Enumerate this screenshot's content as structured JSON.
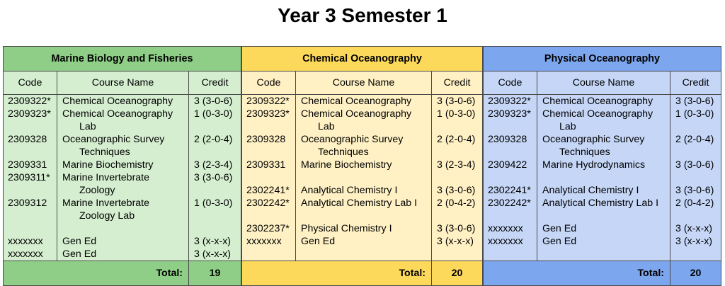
{
  "title": "Year 3 Semester 1",
  "columns": {
    "code": "Code",
    "name": "Course Name",
    "credit": "Credit"
  },
  "total_label": "Total:",
  "programs": [
    {
      "name": "Marine Biology and Fisheries",
      "total": "19",
      "rows": [
        {
          "code": "2309322*",
          "name": [
            "Chemical Oceanography"
          ],
          "credit": "3 (3-0-6)"
        },
        {
          "code": "2309323*",
          "name": [
            "Chemical Oceanography",
            "Lab"
          ],
          "credit": "1 (0-3-0)"
        },
        {
          "code": "2309328",
          "name": [
            "Oceanographic Survey",
            "Techniques"
          ],
          "credit": "2 (2-0-4)"
        },
        {
          "code": "2309331",
          "name": [
            "Marine Biochemistry"
          ],
          "credit": "3 (2-3-4)"
        },
        {
          "code": "2309311*",
          "name": [
            "Marine Invertebrate",
            "Zoology"
          ],
          "credit": "3 (3-0-6)"
        },
        {
          "code": "2309312",
          "name": [
            "Marine Invertebrate",
            "Zoology Lab"
          ],
          "credit": "1 (0-3-0)"
        },
        {
          "code": "",
          "name": [
            ""
          ],
          "credit": ""
        },
        {
          "code": "xxxxxxx",
          "name": [
            "Gen Ed"
          ],
          "credit": "3 (x-x-x)"
        },
        {
          "code": "xxxxxxx",
          "name": [
            "Gen Ed"
          ],
          "credit": "3 (x-x-x)"
        }
      ]
    },
    {
      "name": "Chemical Oceanography",
      "total": "20",
      "rows": [
        {
          "code": "2309322*",
          "name": [
            "Chemical Oceanography"
          ],
          "credit": "3 (3-0-6)"
        },
        {
          "code": "2309323*",
          "name": [
            "Chemical Oceanography",
            "Lab"
          ],
          "credit": "1 (0-3-0)"
        },
        {
          "code": "2309328",
          "name": [
            "Oceanographic Survey",
            "Techniques"
          ],
          "credit": "2 (2-0-4)"
        },
        {
          "code": "2309331",
          "name": [
            "Marine Biochemistry"
          ],
          "credit": "3 (2-3-4)"
        },
        {
          "code": "",
          "name": [
            ""
          ],
          "credit": ""
        },
        {
          "code": "2302241*",
          "name": [
            "Analytical Chemistry I"
          ],
          "credit": "3 (3-0-6)"
        },
        {
          "code": "2302242*",
          "name": [
            "Analytical Chemistry Lab I"
          ],
          "credit": "2 (0-4-2)"
        },
        {
          "code": "",
          "name": [
            ""
          ],
          "credit": ""
        },
        {
          "code": "2302237*",
          "name": [
            "Physical Chemistry I"
          ],
          "credit": "3 (3-0-6)"
        },
        {
          "code": "xxxxxxx",
          "name": [
            "Gen Ed"
          ],
          "credit": "3 (x-x-x)"
        }
      ]
    },
    {
      "name": "Physical Oceanography",
      "total": "20",
      "rows": [
        {
          "code": "2309322*",
          "name": [
            "Chemical Oceanography"
          ],
          "credit": "3 (3-0-6)"
        },
        {
          "code": "2309323*",
          "name": [
            "Chemical Oceanography",
            "Lab"
          ],
          "credit": "1 (0-3-0)"
        },
        {
          "code": "2309328",
          "name": [
            "Oceanographic Survey",
            "Techniques"
          ],
          "credit": "2 (2-0-4)"
        },
        {
          "code": "2309422",
          "name": [
            "Marine Hydrodynamics"
          ],
          "credit": "3 (3-0-6)"
        },
        {
          "code": "",
          "name": [
            ""
          ],
          "credit": ""
        },
        {
          "code": "2302241*",
          "name": [
            "Analytical Chemistry I"
          ],
          "credit": "3 (3-0-6)"
        },
        {
          "code": "2302242*",
          "name": [
            "Analytical Chemistry Lab I"
          ],
          "credit": "2 (0-4-2)"
        },
        {
          "code": "",
          "name": [
            ""
          ],
          "credit": ""
        },
        {
          "code": "xxxxxxx",
          "name": [
            "Gen Ed"
          ],
          "credit": "3 (x-x-x)"
        },
        {
          "code": "xxxxxxx",
          "name": [
            "Gen Ed"
          ],
          "credit": "3 (x-x-x)"
        }
      ]
    }
  ]
}
